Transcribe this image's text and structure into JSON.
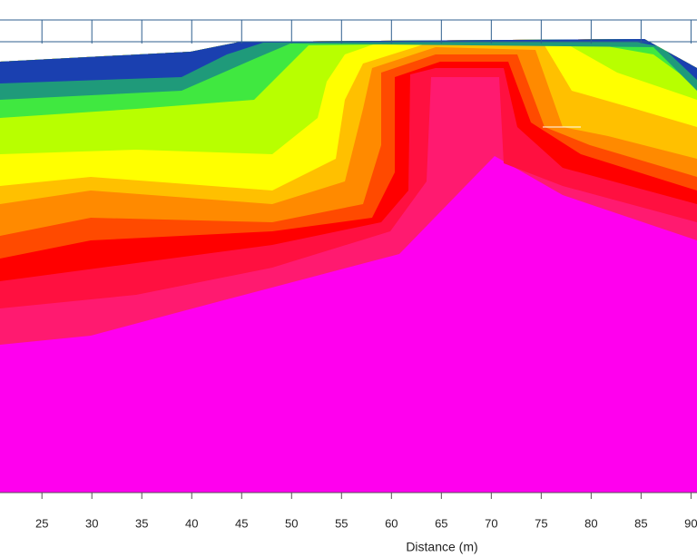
{
  "chart_data": {
    "type": "contour",
    "x_label": "Distance (m)",
    "xlim": [
      20.8,
      90.6
    ],
    "xticks": [
      25,
      30,
      35,
      40,
      45,
      50,
      55,
      60,
      65,
      70,
      75,
      80,
      85,
      90
    ],
    "grid": true
  }
}
